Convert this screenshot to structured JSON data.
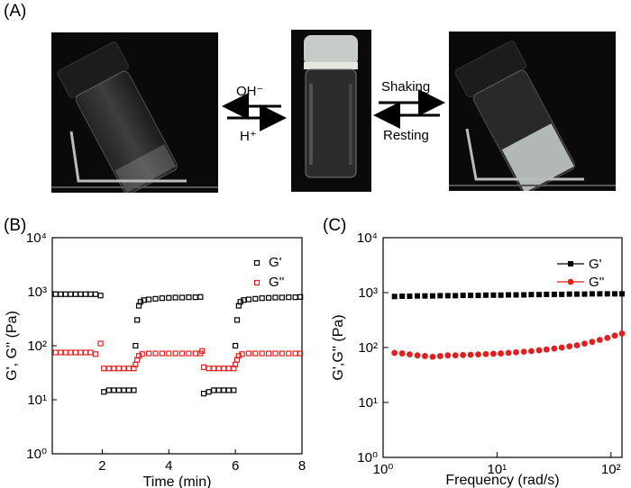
{
  "panel_labels": {
    "a": "(A)",
    "b": "(B)",
    "c": "(C)"
  },
  "panel_a": {
    "arrow_left_top": "OH⁻",
    "arrow_left_bottom": "H⁺",
    "arrow_right_top": "Shaking",
    "arrow_right_bottom": "Resting"
  },
  "chart_data": [
    {
      "type": "scatter",
      "panel": "B",
      "xlabel": "Time (min)",
      "ylabel": "G', G'' (Pa)",
      "xlim": [
        0.5,
        8
      ],
      "ylim": [
        1,
        10000
      ],
      "yscale": "log",
      "x_ticks": [
        "2",
        "4",
        "6",
        "8"
      ],
      "y_ticks": [
        "10⁰",
        "10¹",
        "10²",
        "10³",
        "10⁴"
      ],
      "legend_position": "top-right",
      "series": [
        {
          "name": "G'",
          "color": "#000000",
          "marker": "open-square",
          "segments": [
            {
              "x": [
                0.6,
                0.75,
                0.9,
                1.05,
                1.2,
                1.35,
                1.5,
                1.65,
                1.8,
                1.95
              ],
              "y": [
                900,
                900,
                900,
                900,
                900,
                900,
                900,
                900,
                900,
                850
              ]
            },
            {
              "x": [
                2.05,
                2.2,
                2.35,
                2.5,
                2.65,
                2.8,
                2.95
              ],
              "y": [
                14,
                15,
                15,
                15,
                15,
                15,
                15
              ]
            },
            {
              "x": [
                3.0,
                3.05,
                3.1,
                3.15,
                3.25,
                3.4,
                3.6,
                3.8,
                4.0,
                4.2,
                4.4,
                4.6,
                4.8,
                4.95
              ],
              "y": [
                100,
                300,
                550,
                650,
                700,
                720,
                740,
                760,
                770,
                780,
                780,
                790,
                790,
                800
              ]
            },
            {
              "x": [
                5.05,
                5.2,
                5.35,
                5.5,
                5.65,
                5.8,
                5.95
              ],
              "y": [
                13,
                14,
                15,
                15,
                15,
                15,
                15
              ]
            },
            {
              "x": [
                6.0,
                6.05,
                6.1,
                6.15,
                6.25,
                6.4,
                6.6,
                6.8,
                7.0,
                7.2,
                7.4,
                7.6,
                7.8,
                7.95
              ],
              "y": [
                100,
                300,
                550,
                650,
                700,
                720,
                740,
                760,
                770,
                780,
                780,
                790,
                790,
                800
              ]
            }
          ]
        },
        {
          "name": "G''",
          "color": "#e02020",
          "marker": "open-square",
          "segments": [
            {
              "x": [
                0.6,
                0.75,
                0.9,
                1.05,
                1.2,
                1.35,
                1.5,
                1.65,
                1.8,
                1.95
              ],
              "y": [
                75,
                75,
                75,
                75,
                75,
                75,
                75,
                75,
                70,
                110
              ]
            },
            {
              "x": [
                2.05,
                2.2,
                2.35,
                2.5,
                2.65,
                2.8,
                2.95
              ],
              "y": [
                38,
                38,
                38,
                38,
                38,
                38,
                38
              ]
            },
            {
              "x": [
                3.0,
                3.05,
                3.1,
                3.2,
                3.4,
                3.6,
                3.8,
                4.0,
                4.2,
                4.4,
                4.6,
                4.8,
                4.95
              ],
              "y": [
                45,
                55,
                65,
                70,
                72,
                72,
                72,
                72,
                72,
                72,
                72,
                72,
                72
              ]
            },
            {
              "x": [
                5.0,
                5.05,
                5.2,
                5.35,
                5.5,
                5.65,
                5.8,
                5.95
              ],
              "y": [
                80,
                40,
                38,
                38,
                38,
                38,
                38,
                38
              ]
            },
            {
              "x": [
                6.0,
                6.05,
                6.1,
                6.2,
                6.4,
                6.6,
                6.8,
                7.0,
                7.2,
                7.4,
                7.6,
                7.8,
                7.95
              ],
              "y": [
                45,
                55,
                65,
                70,
                72,
                72,
                72,
                72,
                72,
                72,
                72,
                72,
                72
              ]
            }
          ]
        }
      ]
    },
    {
      "type": "line",
      "panel": "C",
      "xlabel": "Frequency (rad/s)",
      "ylabel": "G',G'' (Pa)",
      "xlim": [
        1,
        125
      ],
      "ylim": [
        1,
        10000
      ],
      "xscale": "log",
      "yscale": "log",
      "x_ticks": [
        "10⁰",
        "10¹",
        "10²"
      ],
      "y_ticks": [
        "10⁰",
        "10¹",
        "10²",
        "10³",
        "10⁴"
      ],
      "legend_position": "top-right",
      "series": [
        {
          "name": "G'",
          "color": "#000000",
          "marker": "filled-square",
          "x": [
            1.26,
            1.47,
            1.71,
            2.0,
            2.33,
            2.72,
            3.17,
            3.7,
            4.31,
            5.03,
            5.86,
            6.84,
            7.97,
            9.3,
            10.8,
            12.6,
            14.7,
            17.2,
            20.0,
            23.4,
            27.2,
            31.8,
            37.0,
            43.2,
            50.3,
            58.7,
            68.4,
            79.8,
            93.0,
            108,
            125
          ],
          "y": [
            850,
            860,
            860,
            870,
            870,
            870,
            880,
            880,
            880,
            890,
            890,
            890,
            900,
            900,
            900,
            910,
            910,
            910,
            920,
            920,
            930,
            930,
            930,
            940,
            940,
            940,
            950,
            950,
            950,
            950,
            950
          ]
        },
        {
          "name": "G''",
          "color": "#e02020",
          "marker": "filled-circle",
          "x": [
            1.26,
            1.47,
            1.71,
            2.0,
            2.33,
            2.72,
            3.17,
            3.7,
            4.31,
            5.03,
            5.86,
            6.84,
            7.97,
            9.3,
            10.8,
            12.6,
            14.7,
            17.2,
            20.0,
            23.4,
            27.2,
            31.8,
            37.0,
            43.2,
            50.3,
            58.7,
            68.4,
            79.8,
            93.0,
            108,
            125
          ],
          "y": [
            80,
            78,
            75,
            72,
            70,
            68,
            70,
            72,
            72,
            73,
            74,
            75,
            76,
            77,
            78,
            80,
            82,
            84,
            86,
            89,
            92,
            96,
            100,
            105,
            110,
            118,
            127,
            138,
            150,
            165,
            180
          ]
        }
      ]
    }
  ]
}
